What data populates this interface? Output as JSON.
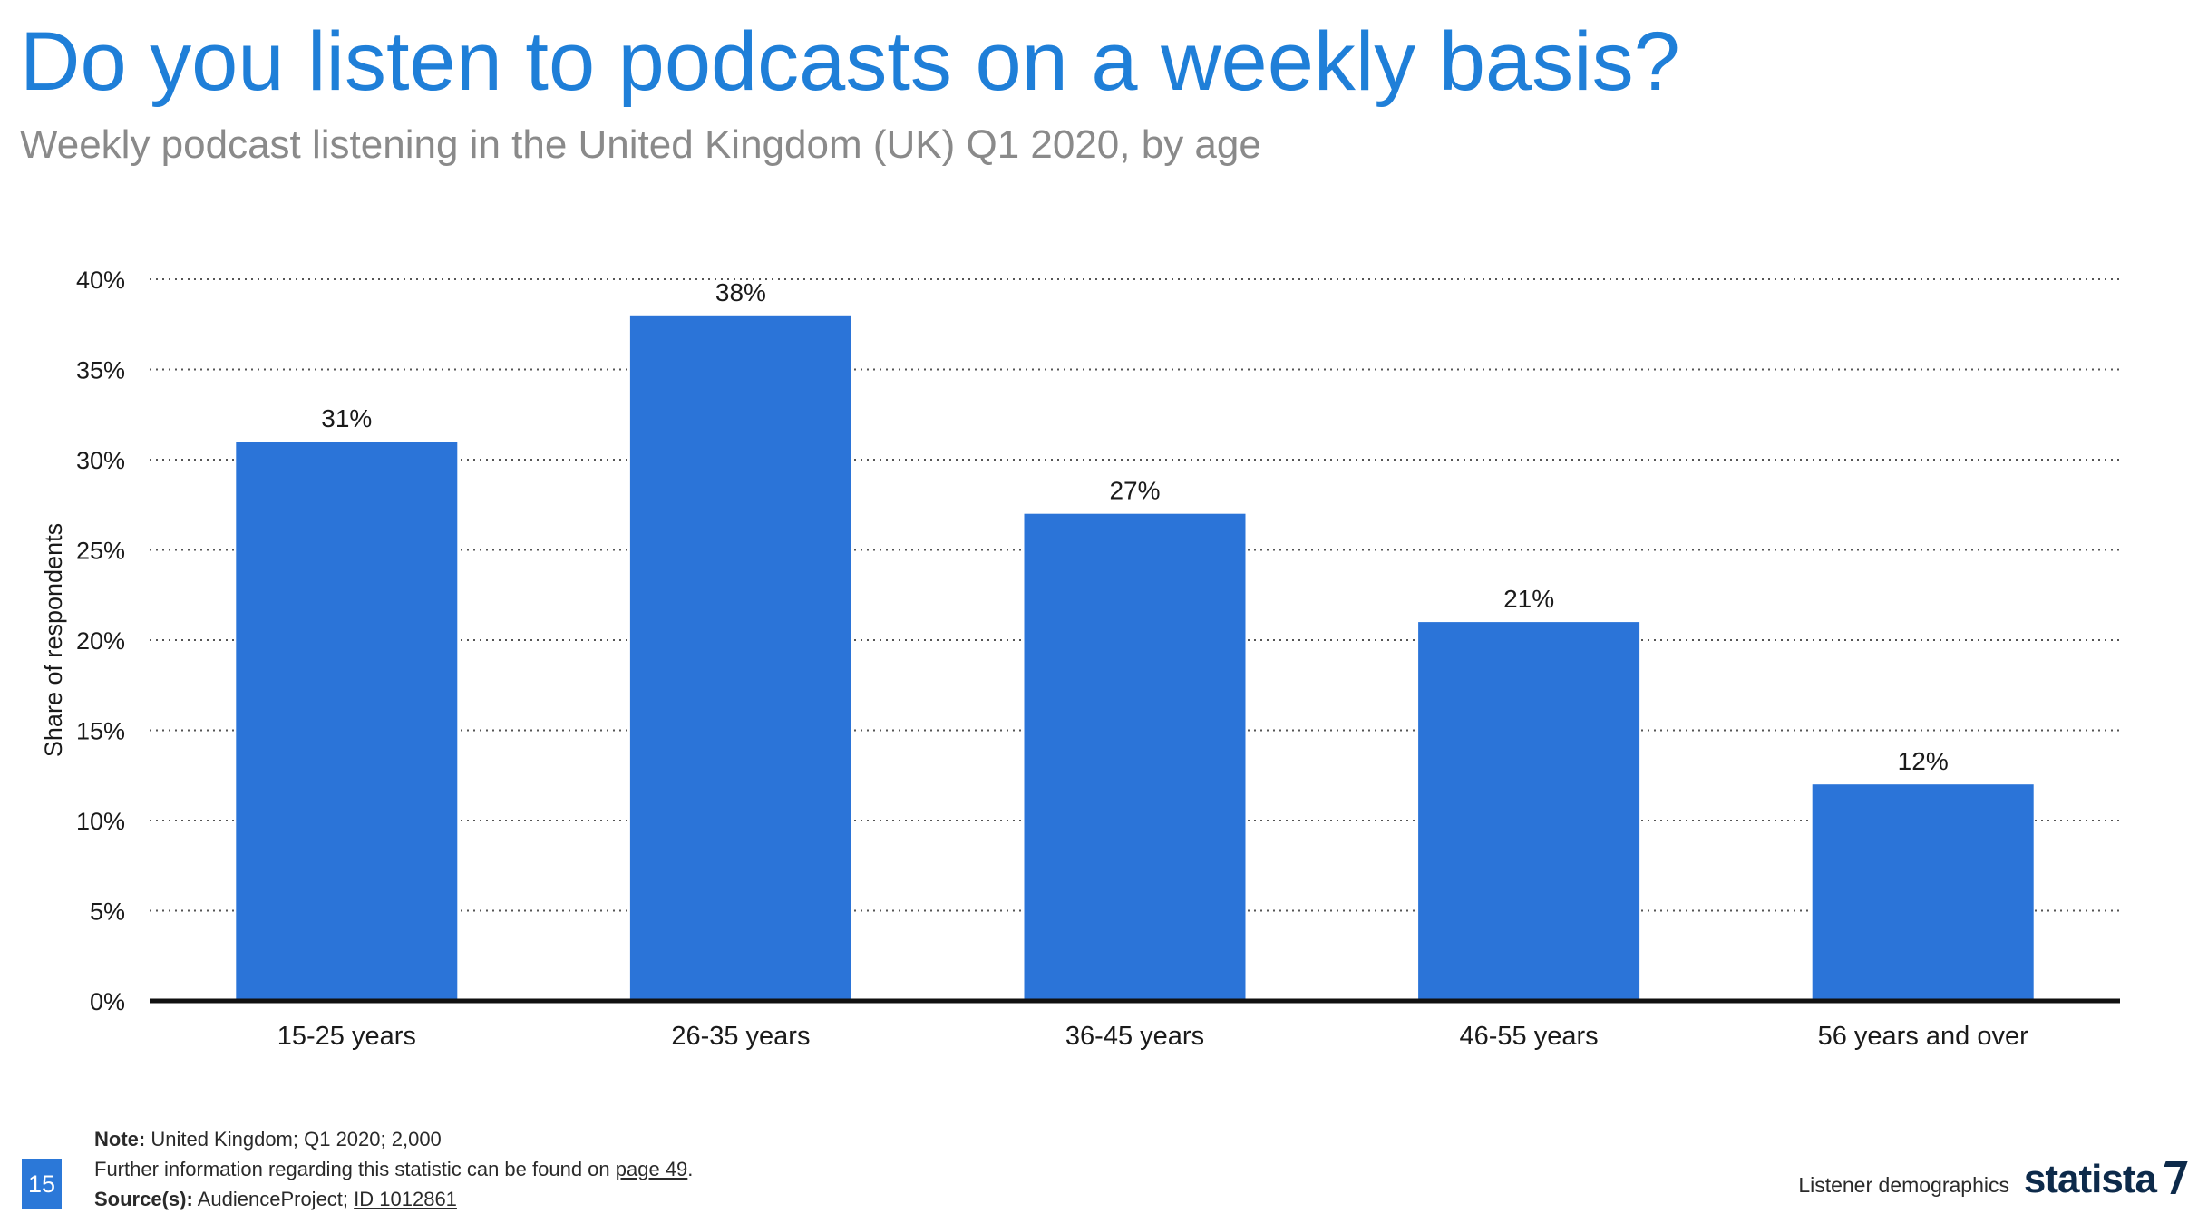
{
  "header": {
    "title": "Do you listen to podcasts on a weekly basis?",
    "subtitle": "Weekly podcast listening in the United Kingdom (UK) Q1 2020, by age"
  },
  "chart_data": {
    "type": "bar",
    "title": "Do you listen to podcasts on a weekly basis?",
    "subtitle": "Weekly podcast listening in the United Kingdom (UK) Q1 2020, by age",
    "xlabel": "",
    "ylabel": "Share of respondents",
    "categories": [
      "15-25 years",
      "26-35 years",
      "36-45 years",
      "46-55 years",
      "56 years and over"
    ],
    "values": [
      31,
      38,
      27,
      21,
      12
    ],
    "value_labels": [
      "31%",
      "38%",
      "27%",
      "21%",
      "12%"
    ],
    "ylim": [
      0,
      40
    ],
    "yticks": [
      0,
      5,
      10,
      15,
      20,
      25,
      30,
      35,
      40
    ],
    "ytick_labels": [
      "0%",
      "5%",
      "10%",
      "15%",
      "20%",
      "25%",
      "30%",
      "35%",
      "40%"
    ],
    "grid": "horizontal dotted",
    "legend": "none",
    "bar_color": "#2b74d8"
  },
  "footer": {
    "note_label": "Note:",
    "note_text": "United Kingdom; Q1 2020; 2,000",
    "info_text": "Further information regarding this statistic can be found on",
    "info_link": "page 49",
    "info_end": ".",
    "source_label": "Source(s):",
    "source_text": "AudienceProject;",
    "source_link": "ID 1012861",
    "page_number": "15",
    "section": "Listener demographics",
    "brand": "statista"
  },
  "colors": {
    "title": "#1f7fd8",
    "subtitle": "#8a8a8a",
    "bar": "#2b74d8",
    "page_badge": "#2b78d8",
    "brand": "#0d2a4a"
  }
}
